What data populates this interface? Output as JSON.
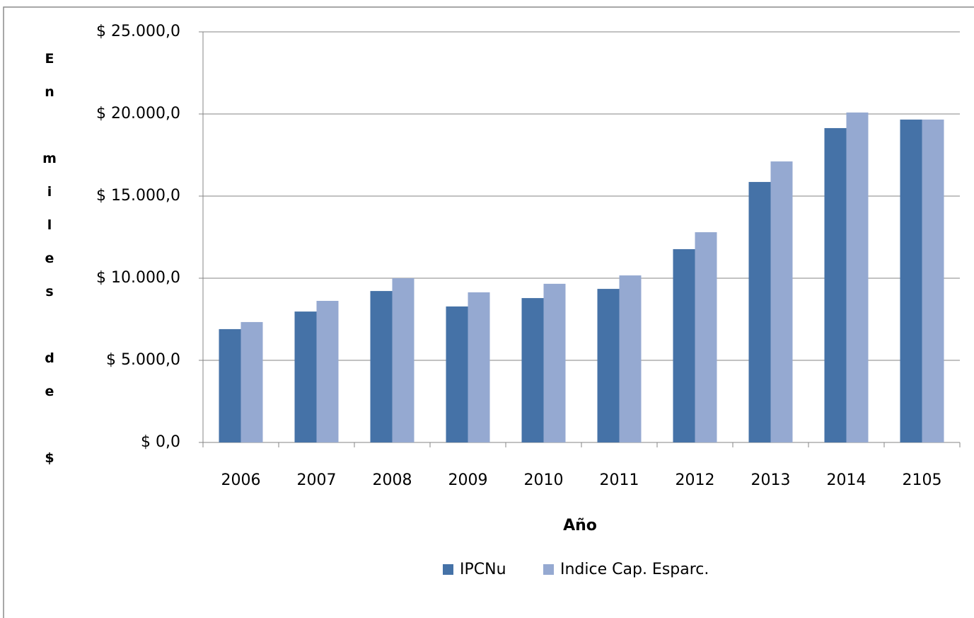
{
  "chart_data": {
    "type": "bar",
    "x_label": "Año",
    "y_label": "En miles de $",
    "categories": [
      "2006",
      "2007",
      "2008",
      "2009",
      "2010",
      "2011",
      "2012",
      "2013",
      "2014",
      "2105"
    ],
    "series": [
      {
        "name": "IPCNu",
        "color": "#4572a7",
        "values": [
          6900,
          7970,
          9220,
          8280,
          8790,
          9350,
          11770,
          15860,
          19140,
          19660
        ]
      },
      {
        "name": "Indice Cap. Esparc.",
        "color": "#95a9d1",
        "values": [
          7330,
          8620,
          10000,
          9140,
          9660,
          10170,
          12800,
          17110,
          20090,
          19660
        ]
      }
    ],
    "ylim": [
      0,
      25000
    ],
    "yticks": [
      {
        "value": 0,
        "label": "$ 0,0"
      },
      {
        "value": 5000,
        "label": "$ 5.000,0"
      },
      {
        "value": 10000,
        "label": "$ 10.000,0"
      },
      {
        "value": 15000,
        "label": "$ 15.000,0"
      },
      {
        "value": 20000,
        "label": "$ 20.000,0"
      },
      {
        "value": 25000,
        "label": "$ 25.000,0"
      }
    ],
    "grid": true,
    "legend": "bottom"
  }
}
